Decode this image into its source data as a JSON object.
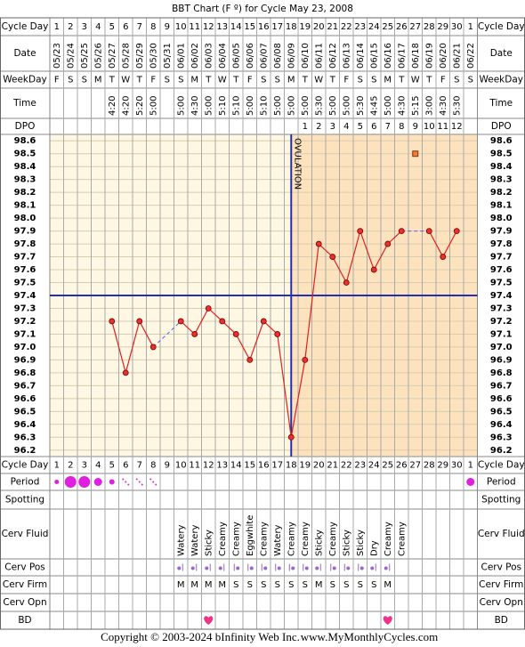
{
  "title": "BBT Chart (F º) for Cycle May 23, 2008",
  "row_labels": {
    "cycle_day": "Cycle Day",
    "date": "Date",
    "weekday": "WeekDay",
    "time": "Time",
    "dpo": "DPO",
    "period": "Period",
    "spotting": "Spotting",
    "cerv_fluid": "Cerv Fluid",
    "cerv_pos": "Cerv Pos",
    "cerv_firm": "Cerv Firm",
    "cerv_opn": "Cerv Opn",
    "bd": "BD"
  },
  "chart_data": {
    "type": "line",
    "categories": [
      1,
      2,
      3,
      4,
      5,
      6,
      7,
      8,
      9,
      10,
      11,
      12,
      13,
      14,
      15,
      16,
      17,
      18,
      19,
      20,
      21,
      22,
      23,
      24,
      25,
      26,
      27,
      28,
      29,
      30,
      1
    ],
    "dates": [
      "05/23",
      "05/24",
      "05/25",
      "05/26",
      "05/27",
      "05/28",
      "05/29",
      "05/30",
      "05/31",
      "06/01",
      "06/02",
      "06/03",
      "06/04",
      "06/05",
      "06/06",
      "06/07",
      "06/08",
      "06/09",
      "06/10",
      "06/11",
      "06/12",
      "06/13",
      "06/14",
      "06/15",
      "06/16",
      "06/17",
      "06/18",
      "06/19",
      "06/20",
      "06/21",
      "06/22"
    ],
    "weekdays": [
      "F",
      "S",
      "S",
      "M",
      "T",
      "W",
      "T",
      "F",
      "S",
      "S",
      "M",
      "T",
      "W",
      "T",
      "F",
      "S",
      "S",
      "M",
      "T",
      "W",
      "T",
      "F",
      "S",
      "S",
      "M",
      "T",
      "W",
      "T",
      "F",
      "S",
      "S"
    ],
    "times": [
      null,
      null,
      null,
      null,
      "4:20",
      "4:20",
      "5:20",
      "5:00",
      null,
      "5:00",
      "4:30",
      "5:00",
      "5:10",
      "5:10",
      "5:00",
      "5:10",
      "5:00",
      "5:00",
      "5:00",
      "5:30",
      "5:00",
      "5:00",
      "5:30",
      "4:45",
      "5:00",
      "4:30",
      "5:15",
      "3:00",
      "4:30",
      "5:30",
      null
    ],
    "dpo": [
      null,
      null,
      null,
      null,
      null,
      null,
      null,
      null,
      null,
      null,
      null,
      null,
      null,
      null,
      null,
      null,
      null,
      null,
      1,
      2,
      3,
      4,
      5,
      6,
      7,
      8,
      9,
      10,
      11,
      12,
      null
    ],
    "series": [
      {
        "name": "BBT",
        "color": "#e02020",
        "values": [
          null,
          null,
          null,
          null,
          97.2,
          96.8,
          97.2,
          97.0,
          null,
          97.2,
          97.1,
          97.3,
          97.2,
          97.1,
          96.9,
          97.2,
          97.1,
          96.3,
          96.9,
          97.8,
          97.7,
          97.5,
          97.9,
          97.6,
          97.8,
          97.9,
          null,
          97.9,
          97.7,
          97.9,
          null
        ]
      }
    ],
    "coverline": 97.4,
    "ovulation": {
      "label": "OVULATION",
      "date": "06/09"
    },
    "marker": {
      "date": "06/18",
      "value": 98.5
    },
    "ylim": [
      96.15,
      98.65
    ],
    "yticks": [
      98.6,
      98.5,
      98.4,
      98.3,
      98.2,
      98.1,
      {
        "value": 98,
        "label": "98.0"
      },
      97.9,
      97.8,
      97.7,
      97.6,
      97.5,
      97.4,
      97.3,
      97.2,
      97.1,
      {
        "value": 97,
        "label": "97.0"
      },
      96.9,
      96.8,
      96.7,
      96.6,
      96.5,
      96.4,
      96.3,
      96.2
    ],
    "grid": true,
    "period": [
      1,
      4,
      4,
      3,
      2,
      1,
      1,
      1,
      null,
      null,
      null,
      null,
      null,
      null,
      null,
      null,
      null,
      null,
      null,
      null,
      null,
      null,
      null,
      null,
      null,
      null,
      null,
      null,
      null,
      null,
      3
    ],
    "cerv_fluid": [
      null,
      null,
      null,
      null,
      null,
      null,
      null,
      null,
      null,
      "Watery",
      "Watery",
      "Sticky",
      "Creamy",
      "Creamy",
      "Eggwhite",
      "Creamy",
      "Watery",
      "Creamy",
      "Creamy",
      "Sticky",
      "Creamy",
      "Sticky",
      "Sticky",
      "Dry",
      "Creamy",
      "Creamy",
      null,
      null,
      null,
      null,
      null
    ],
    "cerv_pos": [
      null,
      null,
      null,
      null,
      null,
      null,
      null,
      null,
      null,
      1,
      1,
      1,
      1,
      2,
      2,
      2,
      2,
      2,
      2,
      1,
      2,
      2,
      2,
      1,
      1,
      null,
      null,
      null,
      null,
      null,
      null
    ],
    "cerv_firm": [
      null,
      null,
      null,
      null,
      null,
      null,
      null,
      null,
      null,
      "M",
      "M",
      "M",
      "M",
      "S",
      "S",
      "S",
      "S",
      "S",
      "S",
      "M",
      "S",
      "S",
      "S",
      "S",
      "M",
      null,
      null,
      null,
      null,
      null,
      null
    ],
    "bd_dates": [
      "06/03",
      "06/16"
    ]
  },
  "copyright": "Copyright © 2003-2024 bInfinity Web Inc.",
  "site": "www.MyMonthlyCycles.com"
}
